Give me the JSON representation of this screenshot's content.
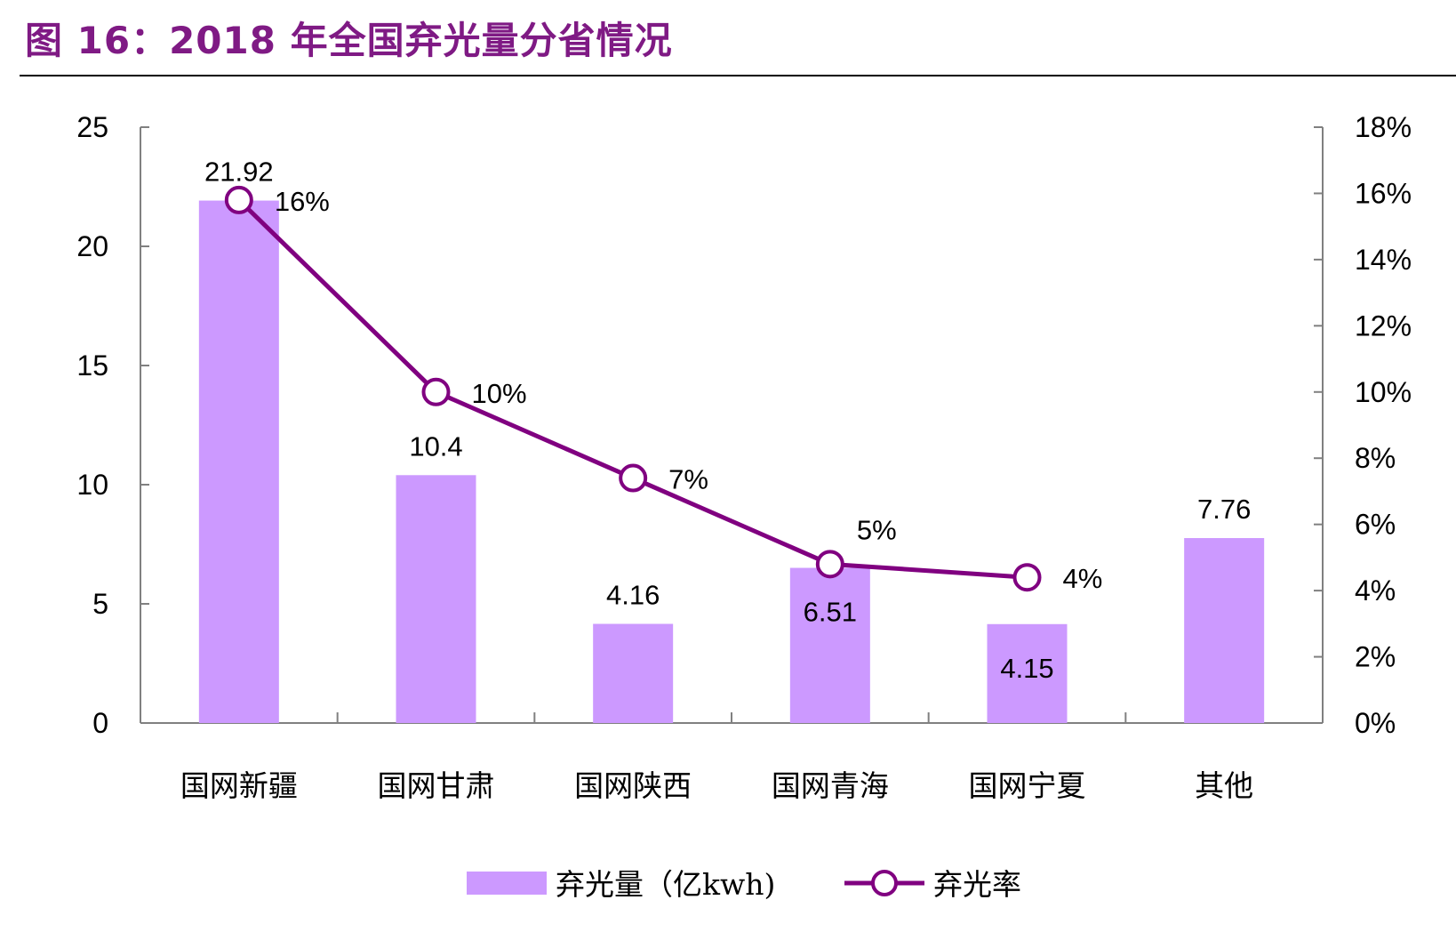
{
  "title": "图 16：2018 年全国弃光量分省情况",
  "colors": {
    "bar": "#cc99ff",
    "line": "#800080",
    "axis": "#808080",
    "title": "#7f1a84"
  },
  "chart_data": {
    "type": "bar+line",
    "categories": [
      "国网新疆",
      "国网甘肃",
      "国网陕西",
      "国网青海",
      "国网宁夏",
      "其他"
    ],
    "series": [
      {
        "name": "弃光量（亿kwh)",
        "type": "bar",
        "axis": "left",
        "values": [
          21.92,
          10.4,
          4.16,
          6.51,
          4.15,
          7.76
        ],
        "labels": [
          "21.92",
          "10.4",
          "4.16",
          "6.51",
          "4.15",
          "7.76"
        ]
      },
      {
        "name": "弃光率",
        "type": "line",
        "axis": "right",
        "values": [
          15.8,
          10.0,
          7.4,
          4.8,
          4.4,
          null
        ],
        "labels": [
          "16%",
          "10%",
          "7%",
          "5%",
          "4%",
          ""
        ]
      }
    ],
    "y_left": {
      "min": 0,
      "max": 25,
      "ticks": [
        "0",
        "5",
        "10",
        "15",
        "20",
        "25"
      ]
    },
    "y_right": {
      "min": 0,
      "max": 18,
      "ticks": [
        "0%",
        "2%",
        "4%",
        "6%",
        "8%",
        "10%",
        "12%",
        "14%",
        "16%",
        "18%"
      ]
    },
    "grid": false,
    "legend": "bottom-center"
  }
}
